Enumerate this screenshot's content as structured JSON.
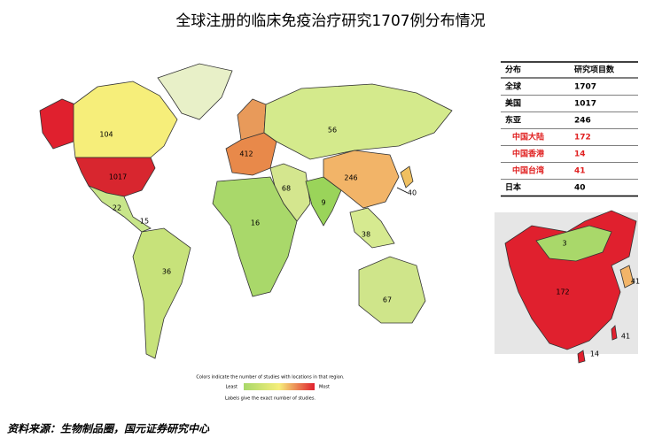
{
  "title": "全球注册的临床免疫治疗研究1707例分布情况",
  "map_labels": [
    104,
    1017,
    22,
    15,
    36,
    412,
    56,
    68,
    9,
    246,
    40,
    16,
    38,
    67
  ],
  "inset_labels": [
    3,
    172,
    41,
    41,
    14
  ],
  "legend": {
    "caption": "Colors indicate the number of studies with locations in that region.",
    "low": "Least",
    "high": "Most",
    "note": "Labels give the exact number of studies."
  },
  "table": {
    "header": [
      "分布",
      "研究项目数"
    ],
    "rows": [
      {
        "label": "全球",
        "value": 1707,
        "color": "#000000"
      },
      {
        "label": "美国",
        "value": 1017,
        "color": "#000000"
      },
      {
        "label": "东亚",
        "value": 246,
        "color": "#000000"
      },
      {
        "label": "中国大陆",
        "value": 172,
        "color": "#e02020"
      },
      {
        "label": "中国香港",
        "value": 14,
        "color": "#e02020"
      },
      {
        "label": "中国台湾",
        "value": 41,
        "color": "#e02020"
      },
      {
        "label": "日本",
        "value": 40,
        "color": "#000000"
      }
    ]
  },
  "source": "资料来源：生物制品圈，国元证券研究中心"
}
